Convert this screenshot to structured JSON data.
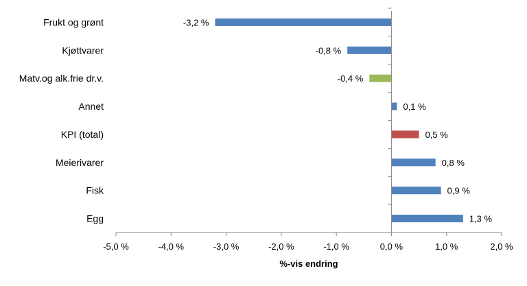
{
  "chart_data": {
    "type": "bar",
    "orientation": "horizontal",
    "categories": [
      "Frukt og grønt",
      "Kjøttvarer",
      "Matv.og alk.frie dr.v.",
      "Annet",
      "KPI (total)",
      "Meierivarer",
      "Fisk",
      "Egg"
    ],
    "values": [
      -3.2,
      -0.8,
      -0.4,
      0.1,
      0.5,
      0.8,
      0.9,
      1.3
    ],
    "value_labels": [
      "-3,2 %",
      "-0,8 %",
      "-0,4 %",
      "0,1 %",
      "0,5 %",
      "0,8 %",
      "0,9 %",
      "1,3 %"
    ],
    "bar_colors": [
      "#4f81bd",
      "#4f81bd",
      "#9bbb59",
      "#4f81bd",
      "#c0504d",
      "#4f81bd",
      "#4f81bd",
      "#4f81bd"
    ],
    "xlim": [
      -5.0,
      2.0
    ],
    "x_ticks": [
      -5.0,
      -4.0,
      -3.0,
      -2.0,
      -1.0,
      0.0,
      1.0,
      2.0
    ],
    "x_tick_labels": [
      "-5,0 %",
      "-4,0 %",
      "-3,0 %",
      "-2,0 %",
      "-1,0 %",
      "0,0 %",
      "1,0 %",
      "2,0 %"
    ],
    "xlabel": "%-vis endring",
    "ylabel": "",
    "title": "",
    "grid": false,
    "legend": "none"
  }
}
